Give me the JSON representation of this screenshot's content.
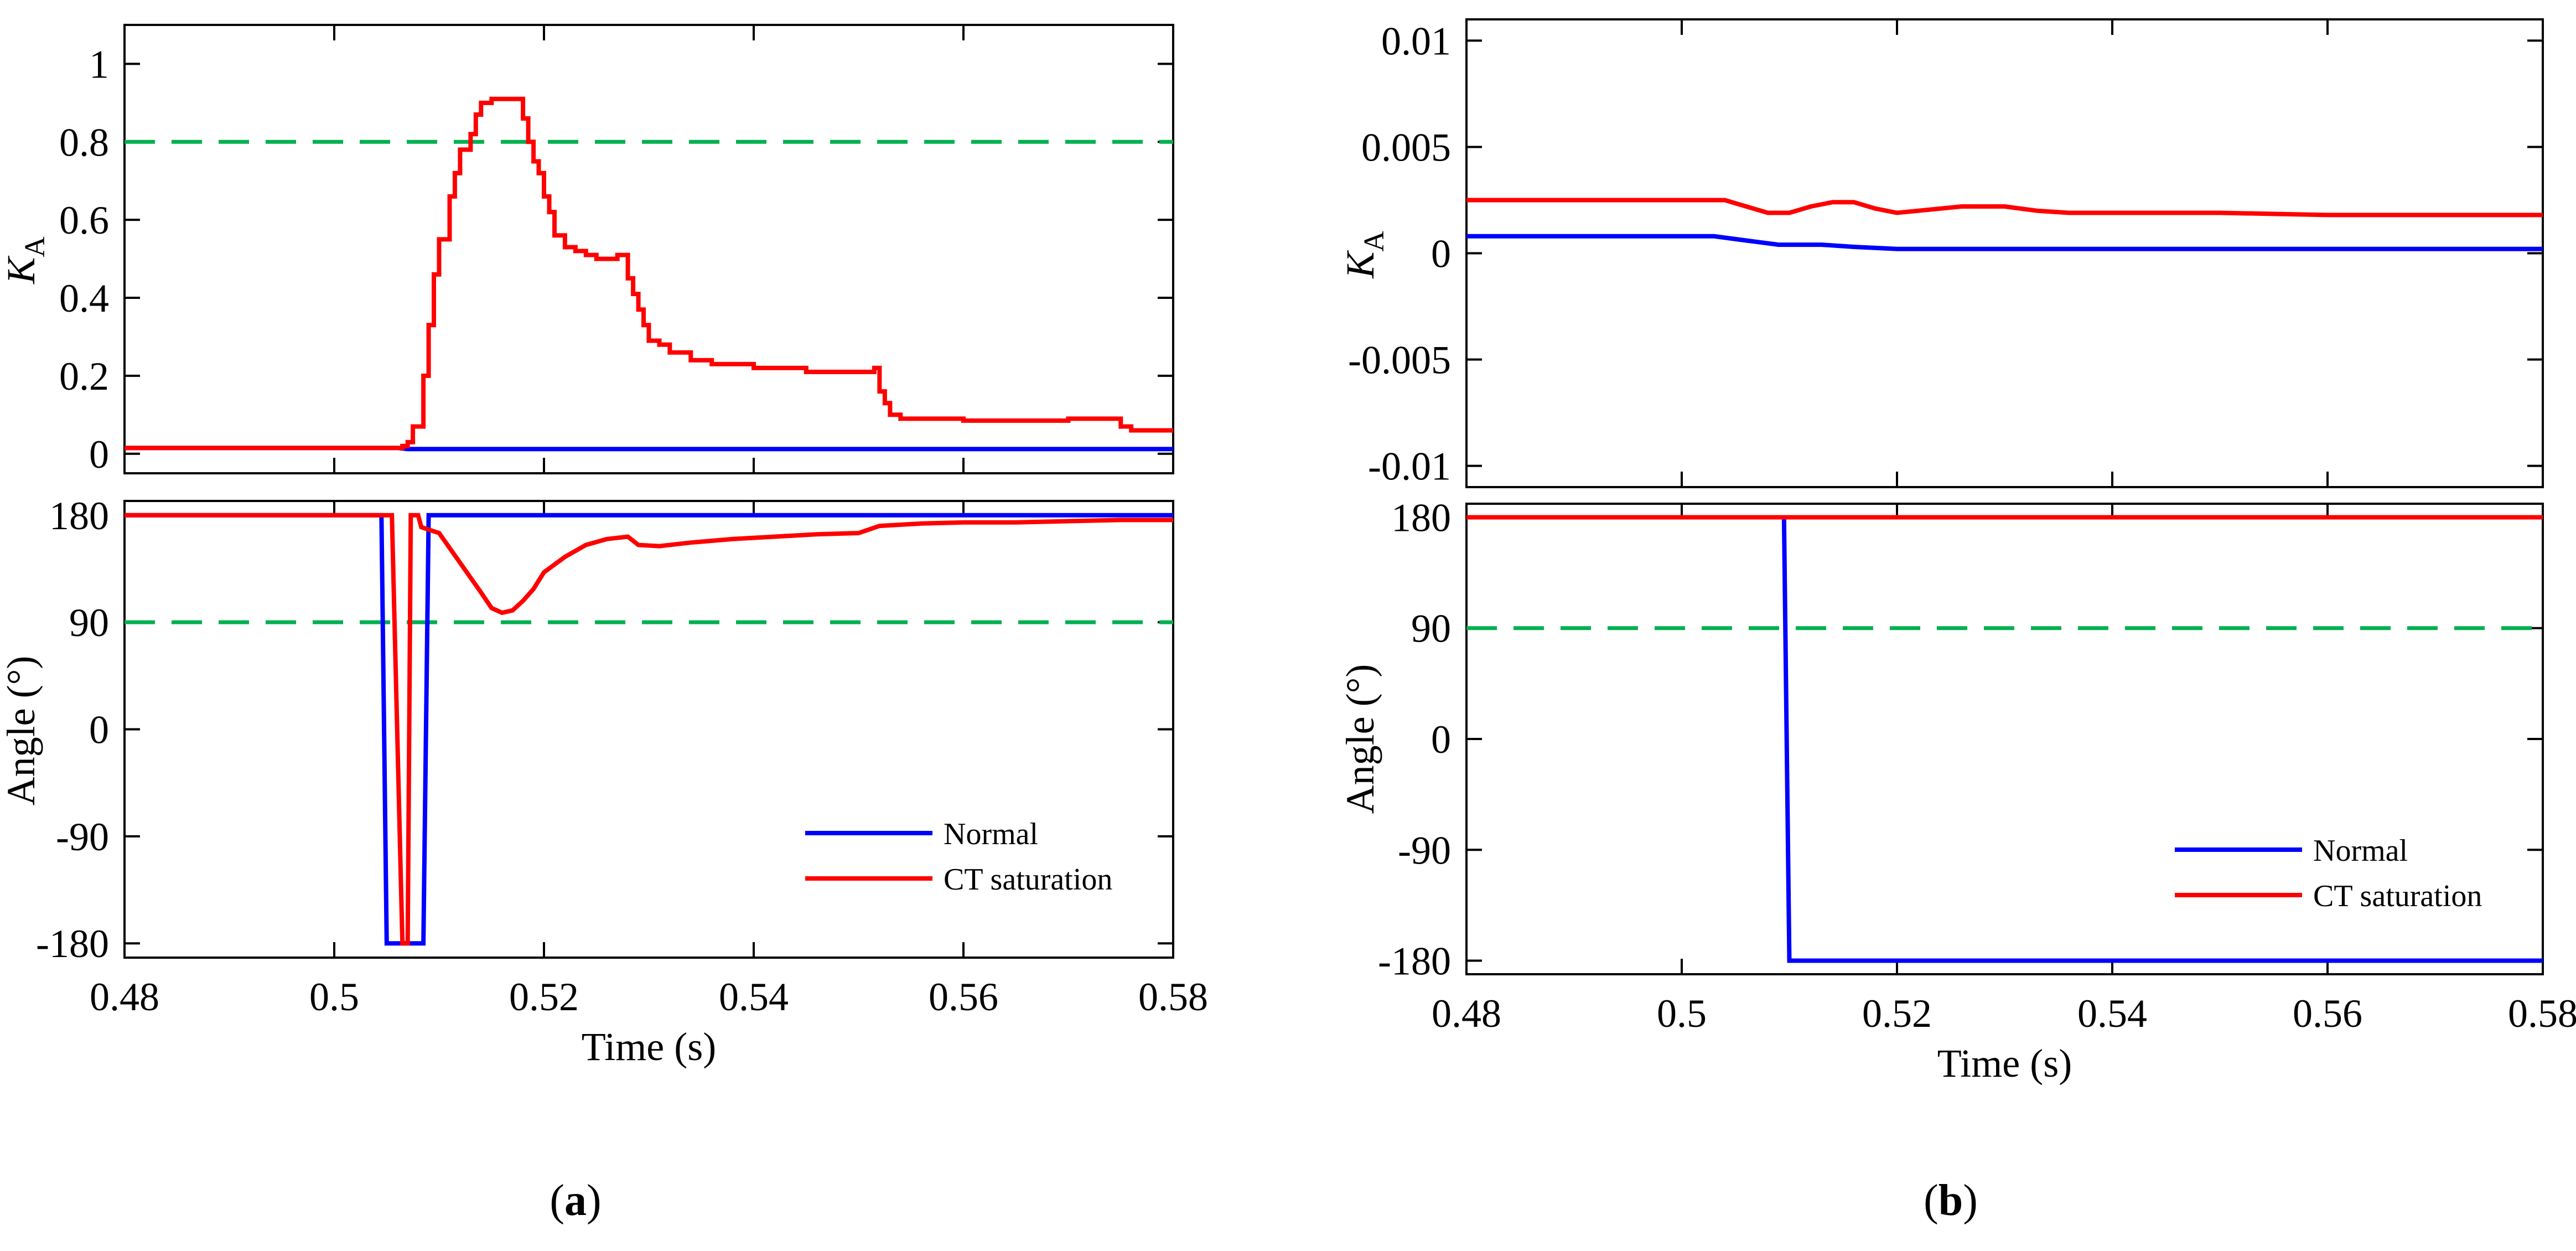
{
  "figure": {
    "panel_a_caption_letter": "a",
    "panel_b_caption_letter": "b",
    "caption_open": "(",
    "caption_close": ")"
  },
  "colors": {
    "normal": "#0000ff",
    "ct_saturation": "#ff0000",
    "threshold": "#00b050",
    "axis": "#000000"
  },
  "chart_data": [
    {
      "id": "a-top",
      "type": "line",
      "panel": "a",
      "ylabel_main": "K",
      "ylabel_sub": "A",
      "xlim": [
        0.48,
        0.58
      ],
      "ylim": [
        -0.05,
        1.1
      ],
      "yticks": [
        0,
        0.2,
        0.4,
        0.6,
        0.8,
        1
      ],
      "ytick_labels": [
        "0",
        "0.2",
        "0.4",
        "0.6",
        "0.8",
        "1"
      ],
      "xticks": [
        0.48,
        0.5,
        0.52,
        0.54,
        0.56,
        0.58
      ],
      "threshold": 0.8,
      "series": [
        {
          "name": "Normal",
          "color_key": "normal",
          "step": false,
          "x": [
            0.48,
            0.506,
            0.507,
            0.58
          ],
          "y": [
            0.015,
            0.015,
            0.012,
            0.012
          ]
        },
        {
          "name": "CT saturation",
          "color_key": "ct_saturation",
          "step": true,
          "x": [
            0.48,
            0.505,
            0.5065,
            0.507,
            0.5075,
            0.508,
            0.5085,
            0.509,
            0.5095,
            0.51,
            0.5105,
            0.511,
            0.5115,
            0.512,
            0.5125,
            0.513,
            0.5135,
            0.514,
            0.5145,
            0.515,
            0.5165,
            0.518,
            0.5185,
            0.519,
            0.5195,
            0.52,
            0.5205,
            0.521,
            0.522,
            0.523,
            0.524,
            0.525,
            0.526,
            0.527,
            0.5275,
            0.528,
            0.5285,
            0.529,
            0.5295,
            0.53,
            0.531,
            0.532,
            0.534,
            0.536,
            0.54,
            0.545,
            0.55,
            0.5515,
            0.552,
            0.5525,
            0.553,
            0.554,
            0.556,
            0.56,
            0.565,
            0.57,
            0.574,
            0.575,
            0.576,
            0.58
          ],
          "y": [
            0.015,
            0.015,
            0.02,
            0.03,
            0.07,
            0.07,
            0.2,
            0.33,
            0.46,
            0.55,
            0.55,
            0.66,
            0.72,
            0.78,
            0.78,
            0.82,
            0.87,
            0.9,
            0.9,
            0.91,
            0.91,
            0.86,
            0.8,
            0.75,
            0.72,
            0.66,
            0.62,
            0.56,
            0.53,
            0.52,
            0.51,
            0.5,
            0.5,
            0.51,
            0.51,
            0.45,
            0.41,
            0.37,
            0.33,
            0.29,
            0.28,
            0.26,
            0.24,
            0.23,
            0.22,
            0.21,
            0.21,
            0.22,
            0.16,
            0.13,
            0.1,
            0.09,
            0.09,
            0.085,
            0.085,
            0.09,
            0.09,
            0.07,
            0.06,
            0.06
          ]
        }
      ]
    },
    {
      "id": "a-bottom",
      "type": "line",
      "panel": "a",
      "ylabel": "Angle (°)",
      "xlabel": "Time (s)",
      "xlim": [
        0.48,
        0.58
      ],
      "ylim": [
        -192,
        192
      ],
      "yticks": [
        -180,
        -90,
        0,
        90,
        180
      ],
      "ytick_labels": [
        "-180",
        "-90",
        "0",
        "90",
        "180"
      ],
      "xticks": [
        0.48,
        0.5,
        0.52,
        0.54,
        0.56,
        0.58
      ],
      "xtick_labels": [
        "0.48",
        "0.5",
        "0.52",
        "0.54",
        "0.56",
        "0.58"
      ],
      "threshold": 90,
      "legend": {
        "position": "lower-right",
        "entries": [
          "Normal",
          "CT saturation"
        ]
      },
      "series": [
        {
          "name": "Normal",
          "color_key": "normal",
          "step": false,
          "x": [
            0.48,
            0.5045,
            0.505,
            0.5085,
            0.509,
            0.58
          ],
          "y": [
            180,
            180,
            -180,
            -180,
            180,
            180
          ]
        },
        {
          "name": "CT saturation",
          "color_key": "ct_saturation",
          "step": false,
          "x": [
            0.48,
            0.5055,
            0.5065,
            0.507,
            0.5073,
            0.508,
            0.5083,
            0.51,
            0.512,
            0.514,
            0.515,
            0.516,
            0.517,
            0.518,
            0.519,
            0.52,
            0.522,
            0.524,
            0.526,
            0.528,
            0.529,
            0.531,
            0.534,
            0.538,
            0.542,
            0.546,
            0.55,
            0.552,
            0.556,
            0.56,
            0.565,
            0.57,
            0.575,
            0.58
          ],
          "y": [
            180,
            180,
            -180,
            -180,
            180,
            180,
            170,
            165,
            140,
            115,
            102,
            98,
            100,
            108,
            118,
            132,
            145,
            155,
            160,
            162,
            155,
            154,
            157,
            160,
            162,
            164,
            165,
            171,
            173,
            174,
            174,
            175,
            176,
            176
          ]
        }
      ]
    },
    {
      "id": "b-top",
      "type": "line",
      "panel": "b",
      "ylabel_main": "K",
      "ylabel_sub": "A",
      "xlim": [
        0.48,
        0.58
      ],
      "ylim": [
        -0.011,
        0.011
      ],
      "yticks": [
        -0.01,
        -0.005,
        0,
        0.005,
        0.01
      ],
      "ytick_labels": [
        "-0.01",
        "-0.005",
        "0",
        "0.005",
        "0.01"
      ],
      "xticks": [
        0.48,
        0.5,
        0.52,
        0.54,
        0.56,
        0.58
      ],
      "series": [
        {
          "name": "Normal",
          "color_key": "normal",
          "step": false,
          "x": [
            0.48,
            0.503,
            0.506,
            0.509,
            0.513,
            0.516,
            0.52,
            0.53,
            0.58
          ],
          "y": [
            0.0008,
            0.0008,
            0.0006,
            0.0004,
            0.0004,
            0.0003,
            0.0002,
            0.0002,
            0.0002
          ]
        },
        {
          "name": "CT saturation",
          "color_key": "ct_saturation",
          "step": false,
          "x": [
            0.48,
            0.504,
            0.506,
            0.508,
            0.51,
            0.512,
            0.514,
            0.516,
            0.518,
            0.52,
            0.522,
            0.526,
            0.53,
            0.533,
            0.536,
            0.54,
            0.55,
            0.56,
            0.57,
            0.58
          ],
          "y": [
            0.0025,
            0.0025,
            0.0022,
            0.0019,
            0.0019,
            0.0022,
            0.0024,
            0.0024,
            0.0021,
            0.0019,
            0.002,
            0.0022,
            0.0022,
            0.002,
            0.0019,
            0.0019,
            0.0019,
            0.0018,
            0.0018,
            0.0018
          ]
        }
      ]
    },
    {
      "id": "b-bottom",
      "type": "line",
      "panel": "b",
      "ylabel": "Angle (°)",
      "xlabel": "Time (s)",
      "xlim": [
        0.48,
        0.58
      ],
      "ylim": [
        -191,
        191
      ],
      "yticks": [
        -180,
        -90,
        0,
        90,
        180
      ],
      "ytick_labels": [
        "-180",
        "-90",
        "0",
        "90",
        "180"
      ],
      "xticks": [
        0.48,
        0.5,
        0.52,
        0.54,
        0.56,
        0.58
      ],
      "xtick_labels": [
        "0.48",
        "0.5",
        "0.52",
        "0.54",
        "0.56",
        "0.58"
      ],
      "threshold": 90,
      "legend": {
        "position": "lower-right",
        "entries": [
          "Normal",
          "CT saturation"
        ]
      },
      "series": [
        {
          "name": "Normal",
          "color_key": "normal",
          "step": false,
          "x": [
            0.48,
            0.5095,
            0.51,
            0.58
          ],
          "y": [
            180,
            180,
            -180,
            -180
          ]
        },
        {
          "name": "CT saturation",
          "color_key": "ct_saturation",
          "step": false,
          "x": [
            0.48,
            0.58
          ],
          "y": [
            180,
            180
          ]
        }
      ]
    }
  ]
}
